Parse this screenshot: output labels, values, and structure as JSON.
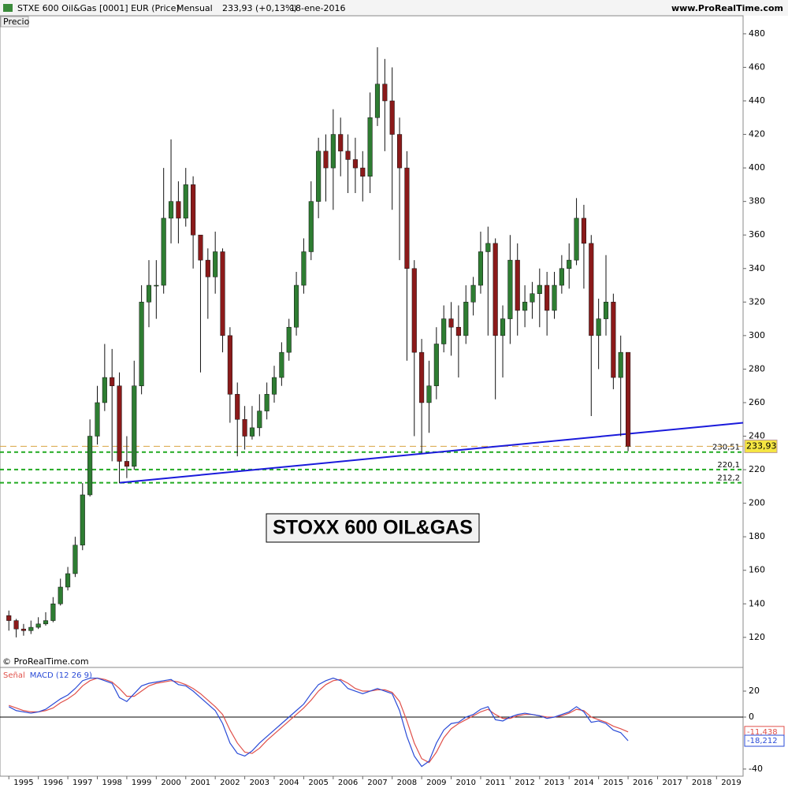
{
  "header": {
    "title": "STXE 600 Oil&Gas [0001] EUR (Price)",
    "period": "Mensual",
    "last": "233,93 (+0,13%)",
    "date": "18-ene-2016",
    "site": "www.ProRealTime.com"
  },
  "chart_data": [
    {
      "type": "candlestick",
      "panel_label": "Precio",
      "annotation": "STOXX 600 OIL&GAS",
      "copyright": "© ProRealTime.com",
      "x": [
        1995,
        1995.25,
        1995.5,
        1995.75,
        1996,
        1996.25,
        1996.5,
        1996.75,
        1997,
        1997.25,
        1997.5,
        1997.75,
        1998,
        1998.25,
        1998.5,
        1998.75,
        1999,
        1999.25,
        1999.5,
        1999.75,
        2000,
        2000.25,
        2000.5,
        2000.75,
        2001,
        2001.25,
        2001.5,
        2001.75,
        2002,
        2002.25,
        2002.5,
        2002.75,
        2003,
        2003.25,
        2003.5,
        2003.75,
        2004,
        2004.25,
        2004.5,
        2004.75,
        2005,
        2005.25,
        2005.5,
        2005.75,
        2006,
        2006.25,
        2006.5,
        2006.75,
        2007,
        2007.25,
        2007.5,
        2007.75,
        2008,
        2008.25,
        2008.5,
        2008.75,
        2009,
        2009.25,
        2009.5,
        2009.75,
        2010,
        2010.25,
        2010.5,
        2010.75,
        2011,
        2011.25,
        2011.5,
        2011.75,
        2012,
        2012.25,
        2012.5,
        2012.75,
        2013,
        2013.25,
        2013.5,
        2013.75,
        2014,
        2014.25,
        2014.5,
        2014.75,
        2015,
        2015.25,
        2015.5,
        2015.75,
        2016
      ],
      "open": [
        133,
        130,
        125,
        124,
        126,
        128,
        130,
        140,
        150,
        158,
        175,
        205,
        240,
        260,
        275,
        270,
        225,
        222,
        270,
        320,
        330,
        330,
        370,
        380,
        370,
        390,
        360,
        345,
        335,
        350,
        300,
        265,
        250,
        240,
        245,
        255,
        265,
        275,
        290,
        305,
        330,
        350,
        380,
        410,
        400,
        420,
        410,
        405,
        400,
        395,
        430,
        450,
        440,
        420,
        400,
        340,
        290,
        260,
        270,
        295,
        310,
        305,
        300,
        320,
        330,
        350,
        355,
        300,
        310,
        345,
        315,
        320,
        325,
        330,
        315,
        330,
        340,
        345,
        370,
        355,
        300,
        310,
        320,
        275,
        290
      ],
      "high": [
        136,
        131,
        128,
        130,
        132,
        135,
        144,
        155,
        162,
        180,
        212,
        250,
        270,
        295,
        292,
        278,
        240,
        285,
        330,
        345,
        345,
        400,
        417,
        392,
        400,
        395,
        360,
        352,
        362,
        352,
        305,
        272,
        258,
        258,
        265,
        272,
        282,
        296,
        310,
        338,
        358,
        392,
        418,
        420,
        435,
        430,
        420,
        418,
        410,
        445,
        472,
        465,
        460,
        430,
        410,
        345,
        298,
        285,
        305,
        318,
        320,
        318,
        330,
        335,
        362,
        365,
        358,
        318,
        360,
        355,
        330,
        332,
        340,
        338,
        338,
        348,
        355,
        382,
        378,
        360,
        322,
        348,
        325,
        300,
        290
      ],
      "low": [
        124,
        120,
        121,
        122,
        125,
        127,
        129,
        139,
        148,
        156,
        172,
        204,
        235,
        255,
        225,
        212,
        215,
        220,
        265,
        305,
        310,
        325,
        355,
        355,
        365,
        340,
        278,
        310,
        325,
        290,
        248,
        228,
        232,
        238,
        240,
        250,
        260,
        270,
        285,
        300,
        325,
        345,
        370,
        380,
        375,
        395,
        385,
        385,
        380,
        385,
        425,
        410,
        375,
        345,
        285,
        240,
        230,
        242,
        262,
        290,
        288,
        275,
        295,
        312,
        325,
        300,
        262,
        275,
        295,
        300,
        305,
        310,
        305,
        300,
        310,
        325,
        328,
        342,
        328,
        252,
        280,
        300,
        268,
        240,
        231
      ],
      "close": [
        130,
        125,
        124,
        126,
        128,
        130,
        140,
        150,
        158,
        175,
        205,
        240,
        260,
        275,
        270,
        225,
        222,
        270,
        320,
        330,
        330,
        370,
        380,
        370,
        390,
        360,
        345,
        335,
        350,
        300,
        265,
        250,
        240,
        245,
        255,
        265,
        275,
        290,
        305,
        330,
        350,
        380,
        410,
        400,
        420,
        410,
        405,
        400,
        395,
        430,
        450,
        440,
        420,
        400,
        340,
        290,
        260,
        270,
        295,
        310,
        305,
        300,
        320,
        330,
        350,
        355,
        300,
        310,
        345,
        315,
        320,
        325,
        330,
        315,
        330,
        340,
        345,
        370,
        355,
        300,
        310,
        320,
        275,
        290,
        233.93
      ],
      "up_color": "#2e7d32",
      "down_color": "#8b1a1a",
      "xlim": [
        1994.7,
        2019.9
      ],
      "ylim": [
        103,
        487
      ],
      "yticks": [
        120,
        140,
        160,
        180,
        200,
        220,
        240,
        260,
        280,
        300,
        320,
        340,
        360,
        380,
        400,
        420,
        440,
        460,
        480
      ],
      "current": {
        "value": 233.93,
        "label": "233,93",
        "color": "#d9a441"
      },
      "levels": [
        {
          "value": 230.51,
          "label": "230,51"
        },
        {
          "value": 220.1,
          "label": "220,1"
        },
        {
          "value": 212.2,
          "label": "212,2"
        }
      ],
      "level_color": "#22aa22",
      "trendline": {
        "x": [
          1998.75,
          2019.9
        ],
        "y": [
          212.2,
          248
        ],
        "color": "#1a1adb"
      }
    },
    {
      "type": "line",
      "xlim": [
        1994.7,
        2019.9
      ],
      "ylim": [
        -45.5,
        36.4
      ],
      "yticks": [
        20,
        0,
        -40
      ],
      "xticks": [
        1995,
        1996,
        1997,
        1998,
        1999,
        2000,
        2001,
        2002,
        2003,
        2004,
        2005,
        2006,
        2007,
        2008,
        2009,
        2010,
        2011,
        2012,
        2013,
        2014,
        2015,
        2016,
        2017,
        2018,
        2019
      ],
      "x": [
        1995,
        1995.25,
        1995.5,
        1995.75,
        1996,
        1996.25,
        1996.5,
        1996.75,
        1997,
        1997.25,
        1997.5,
        1997.75,
        1998,
        1998.25,
        1998.5,
        1998.75,
        1999,
        1999.25,
        1999.5,
        1999.75,
        2000,
        2000.25,
        2000.5,
        2000.75,
        2001,
        2001.25,
        2001.5,
        2001.75,
        2002,
        2002.25,
        2002.5,
        2002.75,
        2003,
        2003.25,
        2003.5,
        2003.75,
        2004,
        2004.25,
        2004.5,
        2004.75,
        2005,
        2005.25,
        2005.5,
        2005.75,
        2006,
        2006.25,
        2006.5,
        2006.75,
        2007,
        2007.25,
        2007.5,
        2007.75,
        2008,
        2008.25,
        2008.5,
        2008.75,
        2009,
        2009.25,
        2009.5,
        2009.75,
        2010,
        2010.25,
        2010.5,
        2010.75,
        2011,
        2011.25,
        2011.5,
        2011.75,
        2012,
        2012.25,
        2012.5,
        2012.75,
        2013,
        2013.25,
        2013.5,
        2013.75,
        2014,
        2014.25,
        2014.5,
        2014.75,
        2015,
        2015.25,
        2015.5,
        2015.75,
        2016
      ],
      "series": [
        {
          "name": "Señal",
          "color": "#e0504a",
          "last": {
            "value": -11.438,
            "label": "-11,438"
          },
          "values": [
            9,
            7,
            5,
            4,
            4,
            5,
            7,
            11,
            14,
            18,
            24,
            28,
            30,
            29,
            27,
            22,
            16,
            16,
            20,
            24,
            26,
            27,
            28,
            27,
            25,
            22,
            18,
            13,
            8,
            2,
            -10,
            -20,
            -27,
            -28,
            -24,
            -18,
            -13,
            -8,
            -3,
            2,
            7,
            13,
            20,
            25,
            28,
            29,
            26,
            22,
            20,
            20,
            21,
            21,
            19,
            12,
            -3,
            -20,
            -32,
            -35,
            -27,
            -16,
            -9,
            -5,
            -2,
            1,
            4,
            6,
            2,
            -1,
            -1,
            1,
            2,
            2,
            1,
            0,
            0,
            1,
            3,
            6,
            5,
            0,
            -2,
            -4,
            -7,
            -9,
            -11.438
          ]
        },
        {
          "name": "MACD (12 26 9)",
          "color": "#2a4bd7",
          "last": {
            "value": -18.212,
            "label": "-18,212"
          },
          "values": [
            8,
            5,
            4,
            3,
            4,
            6,
            10,
            14,
            17,
            22,
            28,
            30,
            30,
            28,
            26,
            15,
            12,
            18,
            24,
            26,
            27,
            28,
            29,
            25,
            24,
            20,
            15,
            10,
            5,
            -5,
            -20,
            -28,
            -30,
            -26,
            -20,
            -15,
            -10,
            -5,
            0,
            5,
            10,
            18,
            25,
            28,
            30,
            28,
            22,
            20,
            18,
            20,
            22,
            20,
            18,
            5,
            -15,
            -30,
            -38,
            -34,
            -20,
            -10,
            -5,
            -4,
            0,
            2,
            6,
            8,
            -2,
            -3,
            0,
            2,
            3,
            2,
            1,
            -1,
            0,
            2,
            4,
            8,
            4,
            -4,
            -3,
            -5,
            -10,
            -12,
            -18.212
          ]
        }
      ]
    }
  ]
}
